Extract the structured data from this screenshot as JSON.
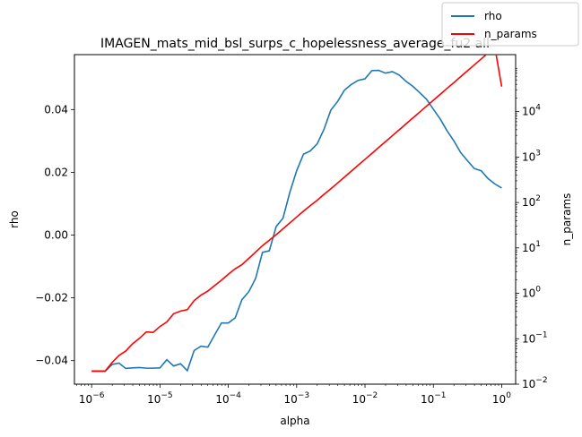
{
  "chart_data": {
    "type": "line",
    "title": "IMAGEN_mats_mid_bsl_surps_c_hopelessness_average_fu2 all",
    "xlabel": "alpha",
    "ylabel": "rho",
    "y2label": "n_params",
    "xscale": "log",
    "y2scale": "log",
    "xlim": [
      5.6e-07,
      1.6
    ],
    "ylim": [
      -0.0475,
      0.0575
    ],
    "y2lim": [
      0.01,
      180000
    ],
    "grid": false,
    "legend_placement": "top-right",
    "x_ticks": [
      {
        "value": 1e-06,
        "base": "10",
        "exp": "−6"
      },
      {
        "value": 1e-05,
        "base": "10",
        "exp": "−5"
      },
      {
        "value": 0.0001,
        "base": "10",
        "exp": "−4"
      },
      {
        "value": 0.001,
        "base": "10",
        "exp": "−3"
      },
      {
        "value": 0.01,
        "base": "10",
        "exp": "−2"
      },
      {
        "value": 0.1,
        "base": "10",
        "exp": "−1"
      },
      {
        "value": 1,
        "base": "10",
        "exp": "0"
      }
    ],
    "y_ticks": [
      {
        "value": -0.04,
        "label": "−0.04"
      },
      {
        "value": -0.02,
        "label": "−0.02"
      },
      {
        "value": 0.0,
        "label": "0.00"
      },
      {
        "value": 0.02,
        "label": "0.02"
      },
      {
        "value": 0.04,
        "label": "0.04"
      }
    ],
    "y2_ticks": [
      {
        "value": 0.01,
        "base": "10",
        "exp": "−2"
      },
      {
        "value": 0.1,
        "base": "10",
        "exp": "−1"
      },
      {
        "value": 1,
        "base": "10",
        "exp": "0"
      },
      {
        "value": 10,
        "base": "10",
        "exp": "1"
      },
      {
        "value": 100,
        "base": "10",
        "exp": "2"
      },
      {
        "value": 1000,
        "base": "10",
        "exp": "3"
      },
      {
        "value": 10000,
        "base": "10",
        "exp": "4"
      }
    ],
    "series": [
      {
        "name": "rho",
        "axis": "left",
        "color": "#1f77b4",
        "points": [
          [
            1e-06,
            -0.0434
          ],
          [
            1.26e-06,
            -0.0434
          ],
          [
            1.58e-06,
            -0.0434
          ],
          [
            2e-06,
            -0.0412
          ],
          [
            2.51e-06,
            -0.0408
          ],
          [
            3.16e-06,
            -0.0425
          ],
          [
            3.98e-06,
            -0.0423
          ],
          [
            5.01e-06,
            -0.0422
          ],
          [
            6.31e-06,
            -0.0424
          ],
          [
            7.94e-06,
            -0.0424
          ],
          [
            1e-05,
            -0.0423
          ],
          [
            1.26e-05,
            -0.0397
          ],
          [
            1.58e-05,
            -0.0417
          ],
          [
            2e-05,
            -0.041
          ],
          [
            2.51e-05,
            -0.0432
          ],
          [
            3.16e-05,
            -0.0368
          ],
          [
            3.98e-05,
            -0.0354
          ],
          [
            5.01e-05,
            -0.0357
          ],
          [
            6.31e-05,
            -0.0318
          ],
          [
            7.94e-05,
            -0.028
          ],
          [
            0.0001,
            -0.028
          ],
          [
            0.000126,
            -0.0264
          ],
          [
            0.000158,
            -0.0206
          ],
          [
            0.0002,
            -0.018
          ],
          [
            0.000251,
            -0.0138
          ],
          [
            0.000316,
            -0.0055
          ],
          [
            0.000398,
            -0.005
          ],
          [
            0.000501,
            0.0027
          ],
          [
            0.000631,
            0.0054
          ],
          [
            0.000794,
            0.0136
          ],
          [
            0.001,
            0.0205
          ],
          [
            0.00126,
            0.0258
          ],
          [
            0.00158,
            0.0268
          ],
          [
            0.002,
            0.0291
          ],
          [
            0.00251,
            0.0337
          ],
          [
            0.00316,
            0.0398
          ],
          [
            0.00398,
            0.0426
          ],
          [
            0.00501,
            0.0462
          ],
          [
            0.00631,
            0.048
          ],
          [
            0.00794,
            0.0493
          ],
          [
            0.01,
            0.0498
          ],
          [
            0.0126,
            0.0524
          ],
          [
            0.0158,
            0.0525
          ],
          [
            0.02,
            0.0516
          ],
          [
            0.0251,
            0.0521
          ],
          [
            0.0316,
            0.051
          ],
          [
            0.0398,
            0.049
          ],
          [
            0.0501,
            0.0474
          ],
          [
            0.0631,
            0.0454
          ],
          [
            0.0794,
            0.0433
          ],
          [
            0.1,
            0.0401
          ],
          [
            0.126,
            0.037
          ],
          [
            0.158,
            0.0333
          ],
          [
            0.2,
            0.03
          ],
          [
            0.251,
            0.0263
          ],
          [
            0.316,
            0.0237
          ],
          [
            0.398,
            0.0212
          ],
          [
            0.501,
            0.0205
          ],
          [
            0.631,
            0.018
          ],
          [
            0.794,
            0.0163
          ],
          [
            1.0,
            0.015
          ]
        ]
      },
      {
        "name": "n_params",
        "axis": "right",
        "color": "#ff0000",
        "points": [
          [
            1e-06,
            0.0195
          ],
          [
            1.26e-06,
            0.0195
          ],
          [
            1.58e-06,
            0.0195
          ],
          [
            2e-06,
            0.0302
          ],
          [
            2.51e-06,
            0.0427
          ],
          [
            3.16e-06,
            0.0537
          ],
          [
            3.98e-06,
            0.0776
          ],
          [
            5.01e-06,
            0.1023
          ],
          [
            6.31e-06,
            0.1413
          ],
          [
            7.94e-06,
            0.138
          ],
          [
            1e-05,
            0.1862
          ],
          [
            1.26e-05,
            0.2344
          ],
          [
            1.58e-05,
            0.3548
          ],
          [
            2e-05,
            0.4074
          ],
          [
            2.51e-05,
            0.4365
          ],
          [
            3.16e-05,
            0.6918
          ],
          [
            3.98e-05,
            0.912
          ],
          [
            5.01e-05,
            1.12
          ],
          [
            6.31e-05,
            1.48
          ],
          [
            7.94e-05,
            1.95
          ],
          [
            0.0001,
            2.63
          ],
          [
            0.000126,
            3.47
          ],
          [
            0.000158,
            4.27
          ],
          [
            0.0002,
            5.89
          ],
          [
            0.000251,
            8.13
          ],
          [
            0.000316,
            11.2
          ],
          [
            0.000398,
            14.8
          ],
          [
            0.000501,
            19.5
          ],
          [
            0.000631,
            26.3
          ],
          [
            0.000794,
            35.5
          ],
          [
            0.001,
            47.9
          ],
          [
            0.00126,
            64.6
          ],
          [
            0.00158,
            85.1
          ],
          [
            0.002,
            112
          ],
          [
            0.00251,
            151
          ],
          [
            0.00316,
            200
          ],
          [
            0.00398,
            269
          ],
          [
            0.00501,
            363
          ],
          [
            0.00631,
            490
          ],
          [
            0.00794,
            661
          ],
          [
            0.01,
            891
          ],
          [
            0.0126,
            1202
          ],
          [
            0.0158,
            1622
          ],
          [
            0.02,
            2188
          ],
          [
            0.0251,
            2951
          ],
          [
            0.0316,
            3981
          ],
          [
            0.0398,
            5370
          ],
          [
            0.0501,
            7244
          ],
          [
            0.0631,
            9772
          ],
          [
            0.0794,
            13183
          ],
          [
            0.1,
            17783
          ],
          [
            0.126,
            23988
          ],
          [
            0.158,
            32359
          ],
          [
            0.2,
            43652
          ],
          [
            0.251,
            58884
          ],
          [
            0.316,
            79433
          ],
          [
            0.398,
            107152
          ],
          [
            0.501,
            144544
          ],
          [
            0.631,
            194984
          ],
          [
            0.794,
            263027
          ],
          [
            1.0,
            35500
          ]
        ]
      }
    ]
  }
}
